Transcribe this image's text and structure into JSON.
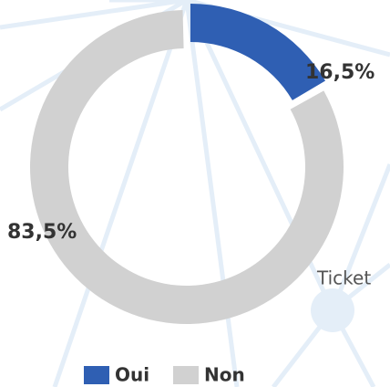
{
  "chart_data": {
    "type": "donut",
    "categories": [
      "Oui",
      "Non"
    ],
    "values": [
      16.5,
      83.5
    ],
    "value_labels": [
      "16,5%",
      "83,5%"
    ],
    "colors": [
      "#2f5fb3",
      "#d1d1d1"
    ],
    "annotation": "Ticket"
  }
}
